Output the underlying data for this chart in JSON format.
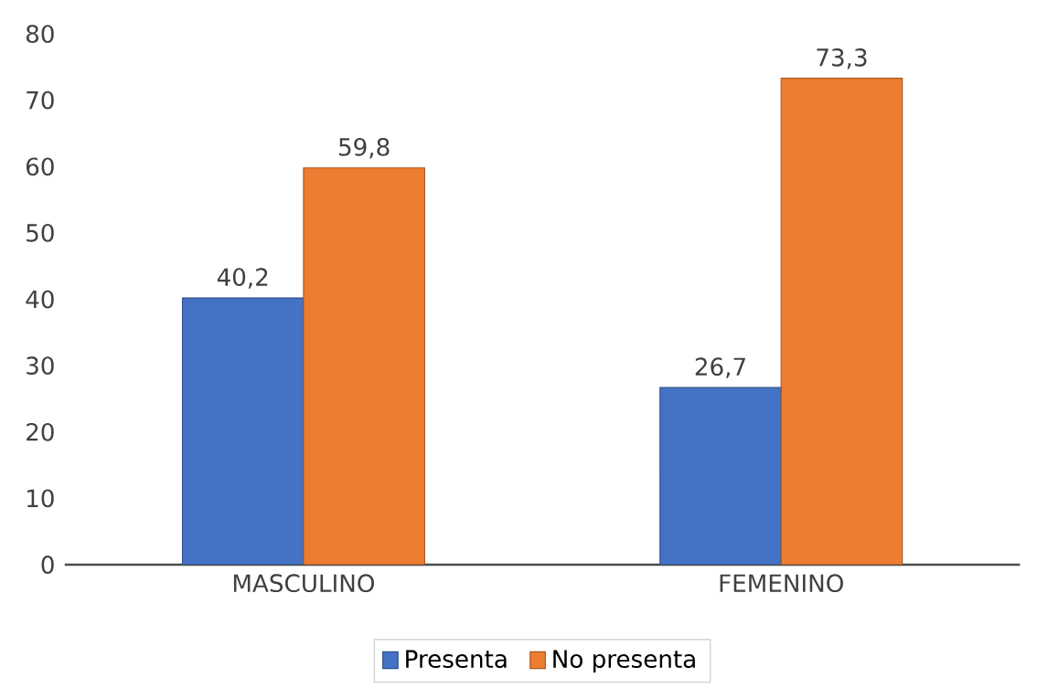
{
  "chart_data": {
    "type": "bar",
    "categories": [
      "MASCULINO",
      "FEMENINO"
    ],
    "series": [
      {
        "name": "Presenta",
        "color": "#4472c4",
        "values": [
          40.2,
          26.7
        ],
        "value_labels": [
          "40,2",
          "26,7"
        ]
      },
      {
        "name": "No presenta",
        "color": "#ed7d31",
        "values": [
          59.8,
          73.3
        ],
        "value_labels": [
          "59,8",
          "73,3"
        ]
      }
    ],
    "ylim": [
      0,
      80
    ],
    "yticks": [
      0,
      10,
      20,
      30,
      40,
      50,
      60,
      70,
      80
    ],
    "legend": "bottom"
  }
}
